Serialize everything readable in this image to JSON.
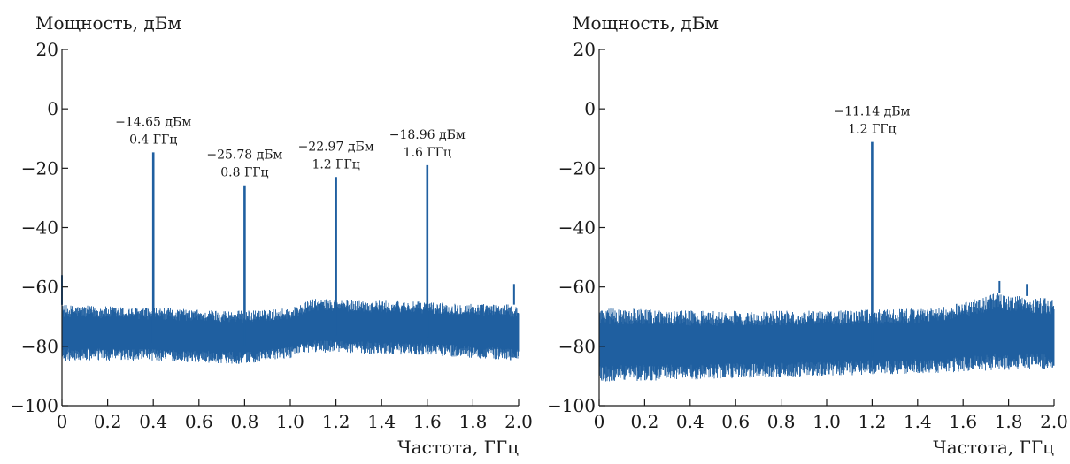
{
  "chart_data": [
    {
      "type": "line",
      "title": "",
      "ylabel": "Мощность, дБм",
      "xlabel": "Частота, ГГц",
      "xlim": [
        0,
        2.0
      ],
      "ylim": [
        -100,
        20
      ],
      "x_ticks": [
        "0",
        "0.2",
        "0.4",
        "0.6",
        "0.8",
        "1.0",
        "1.2",
        "1.4",
        "1.6",
        "1.8",
        "2.0"
      ],
      "y_ticks": [
        "20",
        "0",
        "−20",
        "−40",
        "−60",
        "−80",
        "−100"
      ],
      "grid": false,
      "line_color": "#1f5fa0",
      "noise_floor": [
        {
          "x": 0.0,
          "top": -66,
          "bottom": -85
        },
        {
          "x": 0.4,
          "top": -67,
          "bottom": -85
        },
        {
          "x": 0.8,
          "top": -68,
          "bottom": -86
        },
        {
          "x": 1.0,
          "top": -67,
          "bottom": -84
        },
        {
          "x": 1.1,
          "top": -64,
          "bottom": -82
        },
        {
          "x": 1.6,
          "top": -65,
          "bottom": -83
        },
        {
          "x": 2.0,
          "top": -66,
          "bottom": -85
        }
      ],
      "edge_spikes": [
        {
          "x": 0.0,
          "y": -56
        },
        {
          "x": 1.98,
          "y": -59
        }
      ],
      "peaks": [
        {
          "x": 0.4,
          "y": -14.65,
          "power_label": "−14.65 дБм",
          "freq_label": "0.4 ГГц"
        },
        {
          "x": 0.8,
          "y": -25.78,
          "power_label": "−25.78 дБм",
          "freq_label": "0.8 ГГц"
        },
        {
          "x": 1.2,
          "y": -22.97,
          "power_label": "−22.97 дБм",
          "freq_label": "1.2 ГГц"
        },
        {
          "x": 1.6,
          "y": -18.96,
          "power_label": "−18.96 дБм",
          "freq_label": "1.6 ГГц"
        }
      ]
    },
    {
      "type": "line",
      "title": "",
      "ylabel": "Мощность, дБм",
      "xlabel": "Частота, ГГц",
      "xlim": [
        0,
        2.0
      ],
      "ylim": [
        -100,
        20
      ],
      "x_ticks": [
        "0",
        "0.2",
        "0.4",
        "0.6",
        "0.8",
        "1.0",
        "1.2",
        "1.4",
        "1.6",
        "1.8",
        "2.0"
      ],
      "y_ticks": [
        "20",
        "0",
        "−20",
        "−40",
        "−60",
        "−80",
        "−100"
      ],
      "grid": false,
      "line_color": "#1f5fa0",
      "noise_floor": [
        {
          "x": 0.0,
          "top": -67,
          "bottom": -92
        },
        {
          "x": 0.5,
          "top": -68,
          "bottom": -91
        },
        {
          "x": 1.0,
          "top": -68,
          "bottom": -90
        },
        {
          "x": 1.5,
          "top": -67,
          "bottom": -89
        },
        {
          "x": 1.75,
          "top": -62,
          "bottom": -88
        },
        {
          "x": 2.0,
          "top": -64,
          "bottom": -88
        }
      ],
      "edge_spikes": [
        {
          "x": 1.76,
          "y": -58
        },
        {
          "x": 1.88,
          "y": -59
        }
      ],
      "peaks": [
        {
          "x": 1.2,
          "y": -11.14,
          "power_label": "−11.14 дБм",
          "freq_label": "1.2 ГГц"
        }
      ]
    }
  ]
}
